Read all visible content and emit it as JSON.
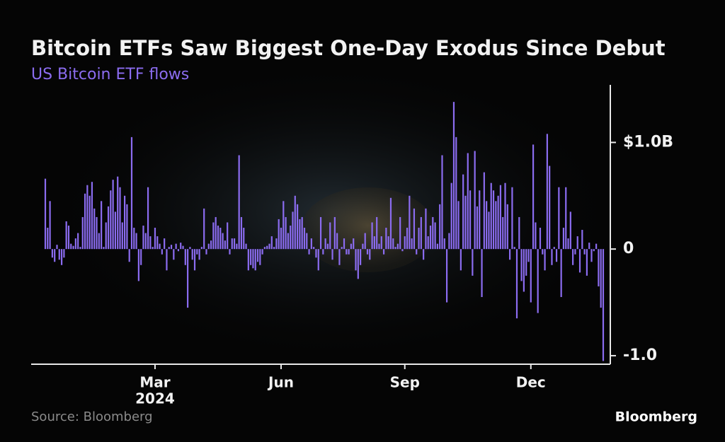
{
  "chart_data": {
    "type": "bar",
    "title": "Bitcoin ETFs Saw Biggest One-Day Exodus Since Debut",
    "subtitle": "US Bitcoin ETF flows",
    "source": "Source: Bloomberg",
    "logo": "Bloomberg",
    "color": "#8b6cf0",
    "ylim": [
      -1.08,
      1.54
    ],
    "yticks": [
      {
        "value": 1,
        "label": "$1.0B"
      },
      0,
      {
        "value": -1,
        "label": "-1.0"
      }
    ],
    "xticks": [
      {
        "value": 47,
        "label": "Mar"
      },
      {
        "value": 101,
        "label": "Jun"
      },
      {
        "value": 154,
        "label": "Sep"
      },
      {
        "value": 208,
        "label": "Dec"
      }
    ],
    "x_sublabel": "2024",
    "categories": [
      null,
      null,
      null,
      null,
      null,
      null,
      null,
      null,
      null,
      null,
      null,
      null,
      null,
      null,
      null,
      null,
      null,
      null,
      null,
      null,
      null,
      null,
      null,
      null,
      null,
      null,
      null,
      null,
      null,
      null,
      null,
      null,
      null,
      null,
      null,
      null,
      null,
      null,
      null,
      null,
      null,
      null,
      null,
      null,
      null,
      null,
      null,
      null,
      null,
      null,
      null,
      null,
      null,
      null,
      null,
      null,
      null,
      null,
      null,
      null,
      null,
      null,
      null,
      null,
      null,
      null,
      null,
      null,
      null,
      null,
      null,
      null,
      null,
      null,
      null,
      null,
      null,
      null,
      null,
      null,
      null,
      null,
      null,
      null,
      null,
      null,
      null,
      null,
      null,
      null,
      null,
      null,
      null,
      null,
      null,
      null,
      null,
      null,
      null,
      null,
      null,
      null,
      null,
      null,
      null,
      null,
      null,
      null,
      null,
      null,
      null,
      null,
      null,
      null,
      null,
      null,
      null,
      null,
      null,
      null,
      null,
      null,
      null,
      null,
      null,
      null,
      null,
      null,
      null,
      null,
      null,
      null,
      null,
      null,
      null,
      null,
      null,
      null,
      null,
      null,
      null,
      null,
      null,
      null,
      null,
      null,
      null,
      null,
      null,
      null,
      null,
      null,
      null,
      null,
      null,
      null,
      null,
      null,
      null,
      null,
      null,
      null,
      null,
      null,
      null,
      null,
      null,
      null,
      null,
      null,
      null,
      null,
      null,
      null,
      null,
      null,
      null,
      null,
      null,
      null,
      null,
      null,
      null,
      null,
      null,
      null,
      null,
      null,
      null,
      null,
      null,
      null,
      null,
      null,
      null,
      null,
      null,
      null,
      null,
      null,
      null,
      null,
      null,
      null,
      null,
      null,
      null,
      null,
      null,
      null,
      null,
      null,
      null,
      null,
      null,
      null,
      null,
      null,
      null,
      null,
      null,
      null,
      null,
      null,
      null,
      null,
      null,
      null,
      null,
      null,
      null,
      null,
      null,
      null,
      null,
      null,
      null,
      null,
      null,
      null
    ],
    "values": [
      0.66,
      0.2,
      0.45,
      -0.08,
      -0.12,
      0.04,
      -0.1,
      -0.15,
      -0.08,
      0.26,
      0.22,
      0.05,
      0.03,
      0.1,
      0.15,
      0.02,
      0.3,
      0.52,
      0.6,
      0.5,
      0.63,
      0.38,
      0.3,
      0.15,
      0.45,
      0.02,
      0.25,
      0.4,
      0.55,
      0.65,
      0.35,
      0.68,
      0.58,
      0.25,
      0.5,
      0.42,
      -0.12,
      1.05,
      0.2,
      0.15,
      -0.3,
      -0.15,
      0.22,
      0.15,
      0.58,
      0.12,
      0.02,
      0.2,
      0.12,
      0.05,
      -0.05,
      0.1,
      -0.2,
      0.02,
      0.04,
      -0.1,
      0.05,
      -0.02,
      0.06,
      0.03,
      -0.15,
      -0.55,
      0.02,
      -0.1,
      -0.2,
      -0.05,
      -0.1,
      0.02,
      0.38,
      -0.05,
      0.05,
      0.08,
      0.25,
      0.3,
      0.22,
      0.2,
      0.15,
      0.08,
      0.25,
      -0.05,
      0.1,
      0.1,
      0.05,
      0.88,
      0.3,
      0.2,
      0.05,
      -0.2,
      -0.15,
      -0.18,
      -0.2,
      -0.12,
      -0.15,
      -0.05,
      0.02,
      0.03,
      0.05,
      0.12,
      0.02,
      0.1,
      0.28,
      0.2,
      0.45,
      0.3,
      0.15,
      0.22,
      0.35,
      0.5,
      0.42,
      0.28,
      0.3,
      0.2,
      0.15,
      -0.05,
      0.1,
      0.02,
      -0.08,
      -0.2,
      0.3,
      -0.05,
      0.1,
      0.05,
      0.25,
      -0.1,
      0.3,
      0.15,
      -0.15,
      0.02,
      0.1,
      -0.05,
      -0.05,
      0.05,
      0.1,
      -0.2,
      -0.28,
      -0.15,
      0.05,
      0.15,
      -0.05,
      -0.1,
      0.25,
      0.12,
      0.3,
      0.05,
      0.12,
      -0.05,
      0.2,
      0.12,
      0.48,
      0.1,
      0.02,
      0.05,
      0.3,
      -0.02,
      0.12,
      0.2,
      0.5,
      0.1,
      0.38,
      -0.05,
      0.2,
      0.3,
      -0.1,
      0.38,
      0.12,
      0.22,
      0.3,
      0.25,
      0.05,
      0.42,
      0.88,
      0.1,
      -0.5,
      0.15,
      0.62,
      1.38,
      1.05,
      0.45,
      -0.2,
      0.7,
      0.5,
      0.9,
      0.55,
      -0.25,
      0.92,
      0.4,
      0.55,
      -0.45,
      0.72,
      0.45,
      0.35,
      0.62,
      0.55,
      0.45,
      0.5,
      0.6,
      0.3,
      0.62,
      0.42,
      -0.1,
      0.58,
      0.02,
      -0.65,
      0.3,
      -0.3,
      -0.4,
      -0.25,
      -0.12,
      -0.5,
      0.98,
      0.25,
      -0.6,
      0.2,
      -0.05,
      -0.2,
      1.08,
      0.78,
      -0.15,
      0.02,
      -0.12,
      0.58,
      -0.45,
      0.2,
      0.58,
      0.1,
      0.35,
      -0.15,
      -0.05,
      0.12,
      -0.22,
      0.18,
      -0.05,
      -0.25,
      0.06,
      -0.12,
      -0.02,
      0.05,
      -0.35,
      -0.55,
      -1.05
    ]
  }
}
